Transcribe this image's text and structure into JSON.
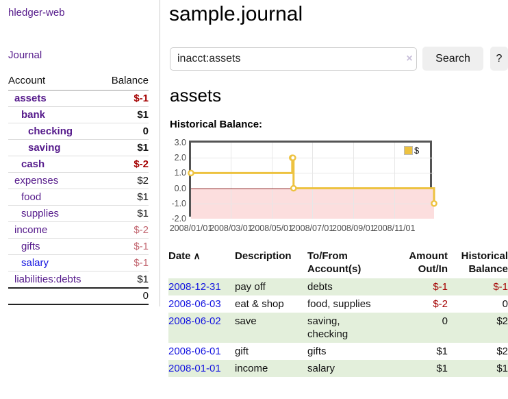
{
  "sidebar": {
    "brand": "hledger-web",
    "journal_link": "Journal",
    "table": {
      "account_header": "Account",
      "balance_header": "Balance",
      "rows": [
        {
          "name": "assets",
          "balance": "$-1",
          "indent": 0,
          "bold": true,
          "balance_class": "negative-strong"
        },
        {
          "name": "bank",
          "balance": "$1",
          "indent": 1,
          "bold": true,
          "balance_class": ""
        },
        {
          "name": "checking",
          "balance": "0",
          "indent": 2,
          "bold": true,
          "balance_class": ""
        },
        {
          "name": "saving",
          "balance": "$1",
          "indent": 2,
          "bold": true,
          "balance_class": ""
        },
        {
          "name": "cash",
          "balance": "$-2",
          "indent": 1,
          "bold": true,
          "balance_class": "negative-strong"
        },
        {
          "name": "expenses",
          "balance": "$2",
          "indent": 0,
          "bold": false,
          "balance_class": ""
        },
        {
          "name": "food",
          "balance": "$1",
          "indent": 1,
          "bold": false,
          "balance_class": ""
        },
        {
          "name": "supplies",
          "balance": "$1",
          "indent": 1,
          "bold": false,
          "balance_class": ""
        },
        {
          "name": "income",
          "balance": "$-2",
          "indent": 0,
          "bold": false,
          "balance_class": "negative-soft"
        },
        {
          "name": "gifts",
          "balance": "$-1",
          "indent": 1,
          "bold": false,
          "balance_class": "negative-soft"
        },
        {
          "name": "salary",
          "balance": "$-1",
          "indent": 1,
          "bold": false,
          "balance_class": "negative-soft",
          "link_class": "blue"
        },
        {
          "name": "liabilities:debts",
          "balance": "$1",
          "indent": 0,
          "bold": false,
          "balance_class": ""
        }
      ],
      "total": "0"
    }
  },
  "header": {
    "title": "sample.journal"
  },
  "search": {
    "value": "inacct:assets",
    "clear_icon": "×",
    "search_button": "Search",
    "help_button": "?"
  },
  "main": {
    "account_title": "assets",
    "chart_heading": "Historical Balance:"
  },
  "chart_data": {
    "type": "line",
    "title": "Historical Balance:",
    "legend": "$",
    "step": true,
    "line_color": "#edc240",
    "negative_region_color": "#fcdede",
    "zero_line_color": "#8b1a1a",
    "ylim": [
      -2,
      3
    ],
    "xlim_days": [
      0,
      365
    ],
    "y_ticks": [
      {
        "label": "3.0",
        "value": 3
      },
      {
        "label": "2.0",
        "value": 2
      },
      {
        "label": "1.0",
        "value": 1
      },
      {
        "label": "0.0",
        "value": 0
      },
      {
        "label": "-1.0",
        "value": -1
      },
      {
        "label": "-2.0",
        "value": -2
      }
    ],
    "x_ticks": [
      {
        "label": "2008/01/01",
        "day": 0
      },
      {
        "label": "2008/03/01",
        "day": 60
      },
      {
        "label": "2008/05/01",
        "day": 121
      },
      {
        "label": "2008/07/01",
        "day": 182
      },
      {
        "label": "2008/09/01",
        "day": 244
      },
      {
        "label": "2008/11/01",
        "day": 305
      }
    ],
    "series": [
      {
        "name": "$",
        "points": [
          {
            "date": "2008/01/01",
            "day": 0,
            "value": 1
          },
          {
            "date": "2008/06/01",
            "day": 152,
            "value": 2
          },
          {
            "date": "2008/06/02",
            "day": 153,
            "value": 2
          },
          {
            "date": "2008/06/03",
            "day": 154,
            "value": 0
          },
          {
            "date": "2008/12/31",
            "day": 365,
            "value": -1
          }
        ]
      }
    ]
  },
  "register": {
    "headers": [
      {
        "line1": "Date",
        "line2": "",
        "sort_icon": "∧",
        "align": "left"
      },
      {
        "line1": "Description",
        "line2": "",
        "align": "left"
      },
      {
        "line1": "To/From",
        "line2": "Account(s)",
        "align": "left"
      },
      {
        "line1": "Amount",
        "line2": "Out/In",
        "align": "right"
      },
      {
        "line1": "Historical",
        "line2": "Balance",
        "align": "right"
      }
    ],
    "rows": [
      {
        "date": "2008-12-31",
        "description": "pay off",
        "accounts": "debts",
        "amount": "$-1",
        "balance": "$-1",
        "amount_negative": true,
        "balance_negative": true
      },
      {
        "date": "2008-06-03",
        "description": "eat & shop",
        "accounts": "food, supplies",
        "amount": "$-2",
        "balance": "0",
        "amount_negative": true,
        "balance_negative": false
      },
      {
        "date": "2008-06-02",
        "description": "save",
        "accounts": "saving, checking",
        "amount": "0",
        "balance": "$2",
        "amount_negative": false,
        "balance_negative": false
      },
      {
        "date": "2008-06-01",
        "description": "gift",
        "accounts": "gifts",
        "amount": "$1",
        "balance": "$2",
        "amount_negative": false,
        "balance_negative": false
      },
      {
        "date": "2008-01-01",
        "description": "income",
        "accounts": "salary",
        "amount": "$1",
        "balance": "$1",
        "amount_negative": false,
        "balance_negative": false
      }
    ]
  },
  "colors": {
    "link_purple": "#551a8b",
    "link_blue": "#1414e0",
    "negative_strong": "#a40000",
    "negative_soft": "#c26670",
    "row_stripe_green": "#e3efdb",
    "button_gray": "#efefef",
    "chart_border": "#545454",
    "chart_yellow": "#edc240"
  }
}
